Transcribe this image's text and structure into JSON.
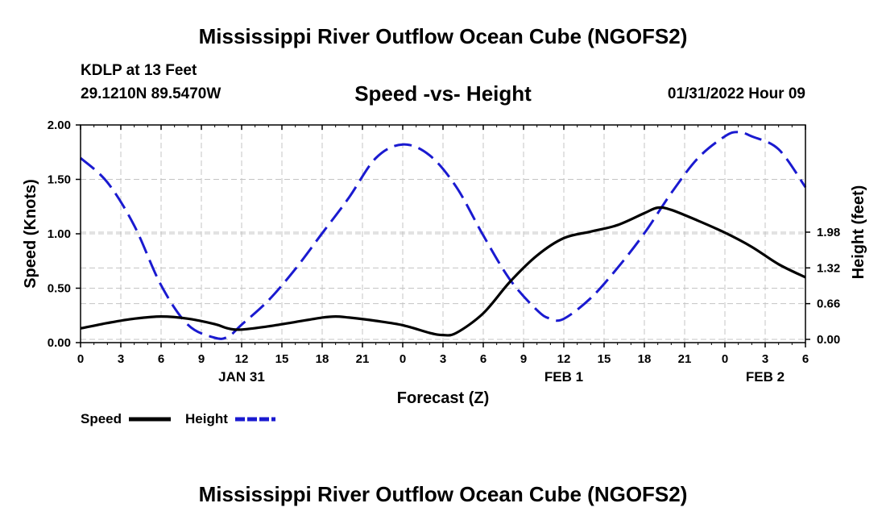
{
  "header": {
    "title": "Mississippi River Outflow Ocean Cube (NGOFS2)",
    "station": "KDLP at 13 Feet",
    "coords": "29.1210N  89.5470W",
    "subtitle": "Speed -vs- Height",
    "datetime": "01/31/2022 Hour 09"
  },
  "footer": {
    "title": "Mississippi River Outflow Ocean Cube (NGOFS2)"
  },
  "chart_data": {
    "type": "line",
    "title": "Speed -vs- Height",
    "xlabel": "Forecast (Z)",
    "ylabel": "Speed (Knots)",
    "y2label": "Height (feet)",
    "xlim": [
      0,
      54
    ],
    "ylim": [
      0,
      2.0
    ],
    "y2lim": [
      -0.06,
      3.96
    ],
    "grid": true,
    "x_ticks": [
      0,
      3,
      6,
      9,
      12,
      15,
      18,
      21,
      24,
      27,
      30,
      33,
      36,
      39,
      42,
      45,
      48,
      51,
      54
    ],
    "x_tick_labels": [
      "0",
      "3",
      "6",
      "9",
      "12",
      "15",
      "18",
      "21",
      "0",
      "3",
      "6",
      "9",
      "12",
      "15",
      "18",
      "21",
      "0",
      "3",
      "6"
    ],
    "y_ticks": [
      0,
      0.5,
      1.0,
      1.5,
      2.0
    ],
    "y_tick_labels": [
      "0.00",
      "0.50",
      "1.00",
      "1.50",
      "2.00"
    ],
    "y2_ticks": [
      0.0,
      0.66,
      1.32,
      1.98
    ],
    "y2_tick_labels": [
      "0.00",
      "0.66",
      "1.32",
      "1.98"
    ],
    "date_labels": [
      {
        "x": 12,
        "label": "JAN 31"
      },
      {
        "x": 36,
        "label": "FEB 1"
      },
      {
        "x": 51,
        "label": "FEB 2"
      }
    ],
    "legend_placement": "bottom-left",
    "series": [
      {
        "name": "Speed",
        "axis": "left",
        "color": "#000000",
        "style": "solid",
        "x": [
          0,
          2,
          4,
          6,
          8,
          10,
          11,
          12,
          14,
          16,
          18,
          19,
          20,
          22,
          24,
          26,
          27,
          28,
          30,
          32,
          34,
          36,
          38,
          40,
          42,
          43,
          44,
          46,
          48,
          50,
          52,
          54
        ],
        "values": [
          0.13,
          0.18,
          0.22,
          0.24,
          0.22,
          0.17,
          0.13,
          0.12,
          0.15,
          0.19,
          0.23,
          0.24,
          0.23,
          0.2,
          0.16,
          0.09,
          0.07,
          0.09,
          0.27,
          0.56,
          0.8,
          0.96,
          1.02,
          1.08,
          1.19,
          1.24,
          1.22,
          1.12,
          1.01,
          0.88,
          0.72,
          0.6
        ]
      },
      {
        "name": "Height",
        "axis": "right",
        "color": "#1a1ad0",
        "style": "dashed",
        "x": [
          0,
          2,
          4,
          6,
          8,
          10,
          11,
          12,
          14,
          16,
          18,
          20,
          22,
          24,
          26,
          28,
          30,
          32,
          34,
          35,
          36,
          38,
          40,
          42,
          44,
          46,
          48,
          49,
          50,
          52,
          54
        ],
        "values": [
          3.35,
          2.9,
          2.1,
          1.0,
          0.27,
          0.03,
          0.05,
          0.27,
          0.72,
          1.3,
          1.96,
          2.62,
          3.35,
          3.6,
          3.4,
          2.81,
          1.92,
          1.1,
          0.54,
          0.38,
          0.38,
          0.76,
          1.32,
          1.96,
          2.7,
          3.35,
          3.75,
          3.83,
          3.75,
          3.51,
          2.81
        ]
      }
    ]
  }
}
